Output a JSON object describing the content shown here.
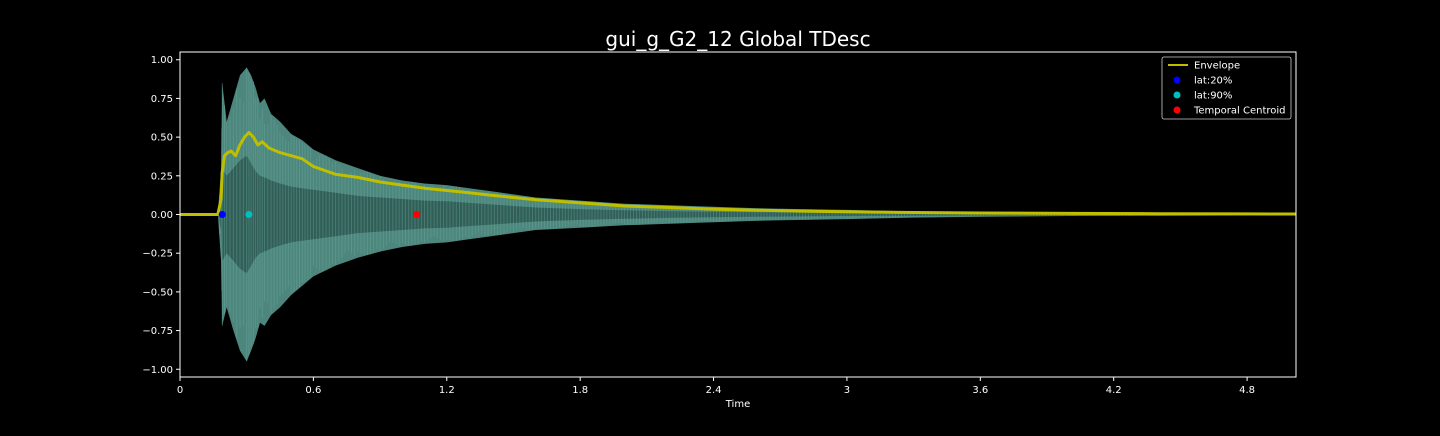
{
  "chart_data": {
    "type": "line",
    "title": "gui_g_G2_12 Global TDesc",
    "xlabel": "Time",
    "ylabel": "",
    "xlim": [
      0,
      5.02
    ],
    "ylim": [
      -1.05,
      1.05
    ],
    "x_ticks": [
      0,
      0.6,
      1.2,
      1.8,
      2.4,
      3.0,
      3.6,
      4.2,
      4.8
    ],
    "x_tick_labels": [
      "0",
      "0.6",
      "1.2",
      "1.8",
      "2.4",
      "3",
      "3.6",
      "4.2",
      "4.8"
    ],
    "y_ticks": [
      1.0,
      0.75,
      0.5,
      0.25,
      0.0,
      -0.25,
      -0.5,
      -0.75,
      -1.0
    ],
    "y_tick_labels": [
      "1.00",
      "0.75",
      "0.50",
      "0.25",
      "0.00",
      "−0.25",
      "−0.50",
      "−0.75",
      "−1.00"
    ],
    "legend_position": "top-right",
    "grid": false,
    "series": [
      {
        "name": "Envelope",
        "kind": "line",
        "color": "#bfbf00",
        "x": [
          0,
          0.17,
          0.185,
          0.19,
          0.2,
          0.215,
          0.23,
          0.25,
          0.27,
          0.29,
          0.31,
          0.33,
          0.35,
          0.37,
          0.4,
          0.45,
          0.5,
          0.55,
          0.6,
          0.7,
          0.8,
          0.9,
          1.0,
          1.1,
          1.2,
          1.3,
          1.4,
          1.5,
          1.6,
          1.7,
          1.8,
          1.9,
          2.0,
          2.2,
          2.4,
          2.6,
          2.8,
          3.0,
          3.3,
          3.6,
          4.0,
          4.4,
          4.8,
          5.02
        ],
        "y": [
          0,
          0,
          0.1,
          0.27,
          0.38,
          0.4,
          0.41,
          0.38,
          0.45,
          0.5,
          0.53,
          0.5,
          0.45,
          0.47,
          0.43,
          0.4,
          0.38,
          0.36,
          0.31,
          0.26,
          0.24,
          0.21,
          0.19,
          0.17,
          0.155,
          0.14,
          0.125,
          0.11,
          0.095,
          0.085,
          0.075,
          0.065,
          0.055,
          0.045,
          0.035,
          0.028,
          0.022,
          0.018,
          0.013,
          0.01,
          0.007,
          0.005,
          0.004,
          0.003
        ]
      },
      {
        "name": "lat:20%",
        "kind": "point",
        "color": "#0000ff",
        "x": [
          0.19
        ],
        "y": [
          0
        ]
      },
      {
        "name": "lat:90%",
        "kind": "point",
        "color": "#00bfbf",
        "x": [
          0.31
        ],
        "y": [
          0
        ]
      },
      {
        "name": "Temporal Centroid",
        "kind": "point",
        "color": "#ff0000",
        "x": [
          1.065
        ],
        "y": [
          0
        ]
      }
    ],
    "waveform": {
      "color": "#5a9e92",
      "x": [
        0,
        0.17,
        0.185,
        0.19,
        0.21,
        0.24,
        0.27,
        0.3,
        0.32,
        0.34,
        0.36,
        0.38,
        0.41,
        0.45,
        0.5,
        0.55,
        0.6,
        0.7,
        0.8,
        0.9,
        1.0,
        1.1,
        1.2,
        1.3,
        1.4,
        1.5,
        1.6,
        1.8,
        2.0,
        2.2,
        2.4,
        2.6,
        2.8,
        3.0,
        3.3,
        3.6,
        4.0,
        4.4,
        4.8,
        5.02
      ],
      "upper": [
        0,
        0,
        0.3,
        0.85,
        0.6,
        0.75,
        0.9,
        0.95,
        0.9,
        0.82,
        0.72,
        0.75,
        0.65,
        0.6,
        0.52,
        0.48,
        0.42,
        0.35,
        0.3,
        0.25,
        0.22,
        0.2,
        0.19,
        0.17,
        0.15,
        0.13,
        0.11,
        0.09,
        0.07,
        0.06,
        0.05,
        0.04,
        0.035,
        0.03,
        0.02,
        0.015,
        0.01,
        0.008,
        0.006,
        0.004
      ],
      "lower": [
        0,
        0,
        -0.3,
        -0.72,
        -0.6,
        -0.75,
        -0.88,
        -0.95,
        -0.88,
        -0.8,
        -0.7,
        -0.72,
        -0.65,
        -0.6,
        -0.52,
        -0.46,
        -0.4,
        -0.33,
        -0.28,
        -0.24,
        -0.21,
        -0.19,
        -0.18,
        -0.16,
        -0.14,
        -0.12,
        -0.1,
        -0.085,
        -0.07,
        -0.06,
        -0.05,
        -0.04,
        -0.035,
        -0.03,
        -0.02,
        -0.015,
        -0.01,
        -0.008,
        -0.006,
        -0.004
      ],
      "inner_upper": [
        0,
        0,
        0.1,
        0.3,
        0.25,
        0.3,
        0.35,
        0.38,
        0.33,
        0.28,
        0.25,
        0.24,
        0.22,
        0.2,
        0.18,
        0.17,
        0.16,
        0.14,
        0.12,
        0.11,
        0.1,
        0.09,
        0.085,
        0.075,
        0.065,
        0.055,
        0.045,
        0.035,
        0.028,
        0.022,
        0.018,
        0.015,
        0.012,
        0.01,
        0.008,
        0.006,
        0.005,
        0.004,
        0.003,
        0.002
      ],
      "inner_lower": [
        0,
        0,
        -0.1,
        -0.3,
        -0.25,
        -0.3,
        -0.35,
        -0.38,
        -0.33,
        -0.28,
        -0.25,
        -0.24,
        -0.22,
        -0.2,
        -0.18,
        -0.17,
        -0.16,
        -0.14,
        -0.12,
        -0.11,
        -0.1,
        -0.09,
        -0.085,
        -0.075,
        -0.065,
        -0.055,
        -0.045,
        -0.035,
        -0.028,
        -0.022,
        -0.018,
        -0.015,
        -0.012,
        -0.01,
        -0.008,
        -0.006,
        -0.005,
        -0.004,
        -0.003,
        -0.002
      ]
    }
  }
}
